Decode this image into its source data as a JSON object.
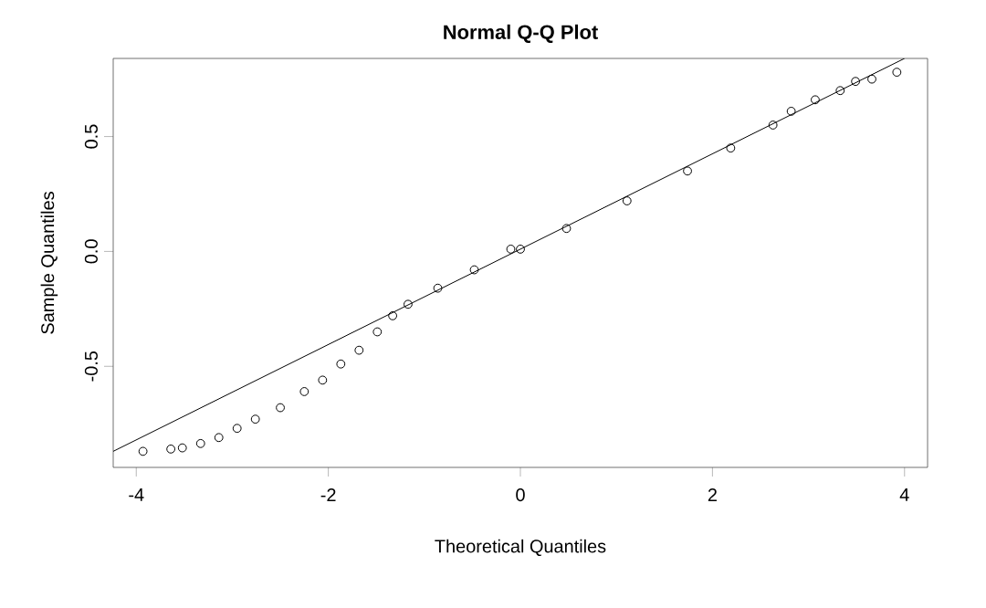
{
  "chart_data": {
    "type": "scatter",
    "title": "Normal Q-Q Plot",
    "xlabel": "Theoretical Quantiles",
    "ylabel": "Sample Quantiles",
    "xlim": [
      -4.24,
      4.24
    ],
    "ylim": [
      -0.94,
      0.84
    ],
    "xticks": [
      -4,
      -2,
      0,
      2,
      4
    ],
    "yticks": [
      -0.5,
      {
        "value": 0,
        "label": "0.0"
      },
      0.5
    ],
    "grid": false,
    "series": [
      {
        "marker": "circle",
        "color": "#000000",
        "x": [
          -3.93,
          -3.64,
          -3.52,
          -3.33,
          -3.14,
          -2.95,
          -2.76,
          -2.5,
          -2.25,
          -2.06,
          -1.87,
          -1.68,
          -1.49,
          -1.33,
          -1.17,
          -0.86,
          -0.48,
          -0.1,
          0,
          0.48,
          1.11,
          1.74,
          2.19,
          2.63,
          2.82,
          3.07,
          3.33,
          3.49,
          3.66,
          3.92
        ],
        "values": [
          -0.87,
          -0.86,
          -0.855,
          -0.836,
          -0.81,
          -0.77,
          -0.73,
          -0.68,
          -0.61,
          -0.56,
          -0.49,
          -0.43,
          -0.35,
          -0.28,
          -0.23,
          -0.16,
          -0.08,
          0.01,
          0.01,
          0.1,
          0.22,
          0.35,
          0.45,
          0.55,
          0.61,
          0.66,
          0.7,
          0.74,
          0.75,
          0.78
        ]
      },
      {
        "type": "line",
        "marker": "none",
        "color": "#000000",
        "x": [
          -4.24,
          4.0
        ],
        "values": [
          -0.87,
          0.84
        ]
      }
    ]
  }
}
